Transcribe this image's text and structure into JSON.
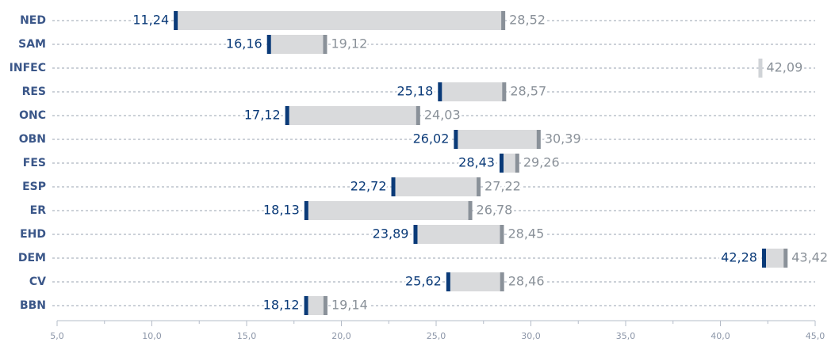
{
  "chart_data": {
    "type": "range",
    "categories": [
      "NED",
      "SAM",
      "INFEC",
      "RES",
      "ONC",
      "OBN",
      "FES",
      "ESP",
      "ER",
      "EHD",
      "DEM",
      "CV",
      "BBN"
    ],
    "series": [
      {
        "color": "#0a3a78",
        "values": [
          11.24,
          16.16,
          null,
          25.18,
          17.12,
          26.02,
          28.43,
          22.72,
          18.13,
          23.89,
          42.28,
          25.62,
          18.12
        ],
        "value_labels": [
          "11,24",
          "16,16",
          null,
          "25,18",
          "17,12",
          "26,02",
          "28,43",
          "22,72",
          "18,13",
          "23,89",
          "42,28",
          "25,62",
          "18,12"
        ]
      },
      {
        "color": "#8a9199",
        "color_alone": "#d0d3d7",
        "values": [
          28.52,
          19.12,
          42.09,
          28.57,
          24.03,
          30.39,
          29.26,
          27.22,
          26.78,
          28.45,
          43.42,
          28.46,
          19.14
        ],
        "value_labels": [
          "28,52",
          "19,12",
          "42,09",
          "28,57",
          "24,03",
          "30,39",
          "29,26",
          "27,22",
          "26,78",
          "28,45",
          "43,42",
          "28,46",
          "19,14"
        ]
      }
    ],
    "range_color": "#d9dadc",
    "xlim": [
      5,
      45
    ],
    "xticks": [
      {
        "value": 5,
        "label": "5,0"
      },
      {
        "value": 10,
        "label": "10,0"
      },
      {
        "value": 15,
        "label": "15,0"
      },
      {
        "value": 20,
        "label": "20,0"
      },
      {
        "value": 25,
        "label": "25,0"
      },
      {
        "value": 30,
        "label": "30,0"
      },
      {
        "value": 35,
        "label": "35,0"
      },
      {
        "value": 40,
        "label": "40,0"
      },
      {
        "value": 45,
        "label": "45,0"
      }
    ],
    "minor_xticks": [
      7.5,
      12.5,
      17.5,
      22.5,
      27.5,
      32.5,
      37.5,
      42.5
    ]
  }
}
